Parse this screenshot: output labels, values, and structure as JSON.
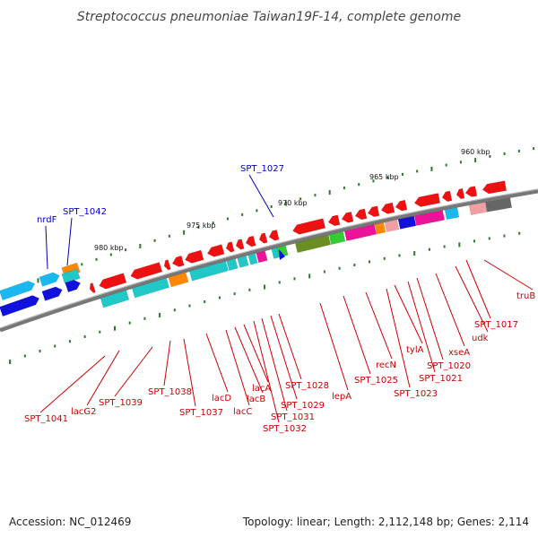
{
  "title": "Streptococcus pneumoniae Taiwan19F-14, complete genome",
  "footer": {
    "accession": "Accession: NC_012469",
    "summary": "Topology: linear; Length: 2,112,148 bp; Genes: 2,114"
  },
  "scale_ticks": [
    "980 kbp",
    "975 kbp",
    "970 kbp",
    "965 kbp",
    "960 kbp"
  ],
  "labels_upper_strand": [
    "nrdF",
    "SPT_1042",
    "SPT_1027"
  ],
  "labels_lower_strand": [
    "SPT_1041",
    "lacG2",
    "SPT_1039",
    "SPT_1038",
    "SPT_1037",
    "lacD",
    "lacC",
    "lacB",
    "lacA",
    "SPT_1032",
    "SPT_1031",
    "SPT_1029",
    "SPT_1028",
    "lepA",
    "SPT_1025",
    "recN",
    "SPT_1023",
    "tylA",
    "SPT_1021",
    "SPT_1020",
    "xseA",
    "udk",
    "SPT_1017",
    "truB"
  ],
  "colors": {
    "gene_red": "#ee1111",
    "gene_cyan": "#20c8c8",
    "gene_sky": "#19b8ee",
    "gene_blue": "#1111dd",
    "gene_orange": "#ff8800",
    "gene_magenta": "#ee1199",
    "gene_olive": "#6b8e23",
    "gene_green": "#33cc33",
    "gene_gray": "#666666",
    "gene_pink": "#f0a0a0",
    "backbone": "#777777",
    "tick_green": "#2a7a2a",
    "label_red": "#cc0000",
    "label_blue": "#0000bb"
  }
}
